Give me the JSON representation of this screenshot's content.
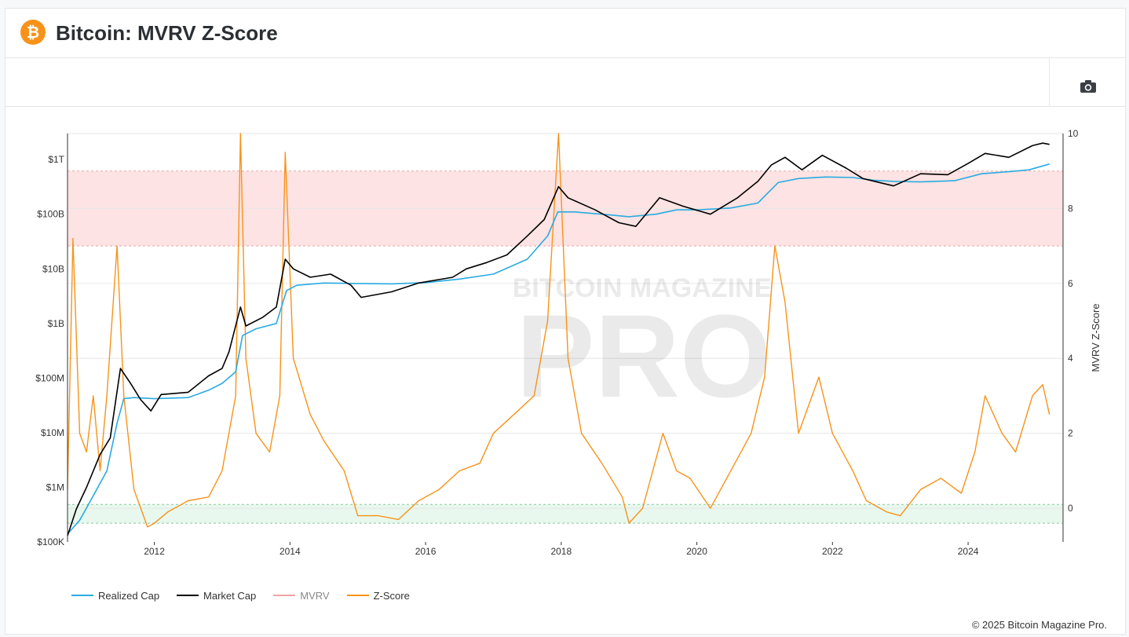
{
  "header": {
    "logo_glyph": "₿",
    "title": "Bitcoin: MVRV Z-Score"
  },
  "toolbar": {
    "camera_icon": "camera-icon"
  },
  "watermark": {
    "line1": "BITCOIN MAGAZINE",
    "line2": "PRO"
  },
  "footer": {
    "copyright": "© 2025 Bitcoin Magazine Pro."
  },
  "colors": {
    "realized": "#29abe2",
    "market": "#000000",
    "mvrv": "#f4a3a3",
    "zscore": "#f7931a",
    "red_band": "#fde3e3",
    "green_band": "#e8f8ee",
    "grid": "#e6e6e6"
  },
  "chart_data": {
    "type": "line",
    "title": "Bitcoin: MVRV Z-Score",
    "xlabel": "",
    "ylabel_right": "MVRV Z-Score",
    "y_left_scale": "log",
    "y_left_ticks": [
      {
        "value": 100000,
        "label": "$100K"
      },
      {
        "value": 1000000,
        "label": "$1M"
      },
      {
        "value": 10000000,
        "label": "$10M"
      },
      {
        "value": 100000000,
        "label": "$100M"
      },
      {
        "value": 1000000000,
        "label": "$1B"
      },
      {
        "value": 10000000000,
        "label": "$10B"
      },
      {
        "value": 100000000000,
        "label": "$100B"
      },
      {
        "value": 1000000000000,
        "label": "$1T"
      }
    ],
    "y_left_range": [
      100000,
      3000000000000
    ],
    "y_right_ticks": [
      0,
      2,
      4,
      6,
      8,
      10
    ],
    "y_right_range": [
      -0.9,
      10
    ],
    "x_ticks": [
      "2012",
      "2014",
      "2016",
      "2018",
      "2020",
      "2022",
      "2024"
    ],
    "x_range": [
      2010.72,
      2025.4
    ],
    "zones": [
      {
        "name": "overvalued",
        "z_from": 7,
        "z_to": 9
      },
      {
        "name": "undervalued",
        "z_from": -0.4,
        "z_to": 0.1
      }
    ],
    "grid": true,
    "legend_position": "bottom-left",
    "series": [
      {
        "name": "Realized Cap",
        "axis": "left",
        "points": [
          [
            2010.72,
            140000
          ],
          [
            2010.9,
            250000
          ],
          [
            2011.1,
            700000
          ],
          [
            2011.3,
            2000000
          ],
          [
            2011.45,
            15000000
          ],
          [
            2011.55,
            42000000
          ],
          [
            2011.7,
            44000000
          ],
          [
            2012.0,
            42000000
          ],
          [
            2012.5,
            44000000
          ],
          [
            2012.8,
            60000000
          ],
          [
            2013.0,
            80000000
          ],
          [
            2013.2,
            130000000
          ],
          [
            2013.3,
            600000000
          ],
          [
            2013.5,
            800000000
          ],
          [
            2013.8,
            1000000000
          ],
          [
            2013.95,
            4000000000
          ],
          [
            2014.1,
            5000000000
          ],
          [
            2014.5,
            5500000000
          ],
          [
            2015.0,
            5400000000
          ],
          [
            2015.5,
            5300000000
          ],
          [
            2016.0,
            5600000000
          ],
          [
            2016.5,
            6500000000
          ],
          [
            2017.0,
            8000000000
          ],
          [
            2017.5,
            15000000000
          ],
          [
            2017.8,
            40000000000
          ],
          [
            2017.95,
            110000000000
          ],
          [
            2018.2,
            110000000000
          ],
          [
            2018.6,
            100000000000
          ],
          [
            2019.0,
            90000000000
          ],
          [
            2019.4,
            100000000000
          ],
          [
            2019.7,
            120000000000
          ],
          [
            2020.0,
            120000000000
          ],
          [
            2020.5,
            130000000000
          ],
          [
            2020.9,
            160000000000
          ],
          [
            2021.2,
            380000000000
          ],
          [
            2021.5,
            450000000000
          ],
          [
            2021.9,
            480000000000
          ],
          [
            2022.3,
            470000000000
          ],
          [
            2022.6,
            420000000000
          ],
          [
            2022.9,
            400000000000
          ],
          [
            2023.3,
            390000000000
          ],
          [
            2023.8,
            410000000000
          ],
          [
            2024.2,
            550000000000
          ],
          [
            2024.6,
            600000000000
          ],
          [
            2024.9,
            650000000000
          ],
          [
            2025.2,
            830000000000
          ]
        ]
      },
      {
        "name": "Market Cap",
        "axis": "left",
        "points": [
          [
            2010.72,
            130000
          ],
          [
            2010.85,
            400000
          ],
          [
            2011.0,
            1000000
          ],
          [
            2011.2,
            4000000
          ],
          [
            2011.35,
            8000000
          ],
          [
            2011.5,
            150000000
          ],
          [
            2011.65,
            80000000
          ],
          [
            2011.8,
            40000000
          ],
          [
            2011.95,
            25000000
          ],
          [
            2012.1,
            50000000
          ],
          [
            2012.5,
            55000000
          ],
          [
            2012.8,
            110000000
          ],
          [
            2013.0,
            150000000
          ],
          [
            2013.1,
            300000000
          ],
          [
            2013.27,
            2000000000
          ],
          [
            2013.35,
            900000000
          ],
          [
            2013.6,
            1300000000
          ],
          [
            2013.8,
            2000000000
          ],
          [
            2013.93,
            15000000000
          ],
          [
            2014.05,
            10000000000
          ],
          [
            2014.3,
            7000000000
          ],
          [
            2014.6,
            8000000000
          ],
          [
            2014.9,
            5000000000
          ],
          [
            2015.05,
            3000000000
          ],
          [
            2015.5,
            3800000000
          ],
          [
            2015.9,
            5500000000
          ],
          [
            2016.4,
            7000000000
          ],
          [
            2016.6,
            10000000000
          ],
          [
            2016.9,
            13000000000
          ],
          [
            2017.2,
            18000000000
          ],
          [
            2017.5,
            40000000000
          ],
          [
            2017.75,
            80000000000
          ],
          [
            2017.96,
            320000000000
          ],
          [
            2018.1,
            200000000000
          ],
          [
            2018.5,
            120000000000
          ],
          [
            2018.85,
            70000000000
          ],
          [
            2019.1,
            60000000000
          ],
          [
            2019.45,
            200000000000
          ],
          [
            2019.8,
            140000000000
          ],
          [
            2020.2,
            100000000000
          ],
          [
            2020.6,
            200000000000
          ],
          [
            2020.9,
            400000000000
          ],
          [
            2021.1,
            800000000000
          ],
          [
            2021.3,
            1100000000000
          ],
          [
            2021.55,
            650000000000
          ],
          [
            2021.85,
            1200000000000
          ],
          [
            2022.2,
            700000000000
          ],
          [
            2022.45,
            450000000000
          ],
          [
            2022.9,
            330000000000
          ],
          [
            2023.3,
            550000000000
          ],
          [
            2023.7,
            530000000000
          ],
          [
            2024.0,
            850000000000
          ],
          [
            2024.25,
            1300000000000
          ],
          [
            2024.6,
            1100000000000
          ],
          [
            2024.95,
            1800000000000
          ],
          [
            2025.1,
            2000000000000
          ],
          [
            2025.2,
            1900000000000
          ]
        ]
      },
      {
        "name": "MVRV",
        "axis": "right",
        "hidden": true,
        "points": []
      },
      {
        "name": "Z-Score",
        "axis": "right",
        "points": [
          [
            2010.72,
            0.5
          ],
          [
            2010.8,
            7.2
          ],
          [
            2010.9,
            2.0
          ],
          [
            2011.0,
            1.5
          ],
          [
            2011.1,
            3.0
          ],
          [
            2011.2,
            1.0
          ],
          [
            2011.3,
            3.0
          ],
          [
            2011.45,
            7.0
          ],
          [
            2011.55,
            3.0
          ],
          [
            2011.7,
            0.5
          ],
          [
            2011.9,
            -0.5
          ],
          [
            2012.0,
            -0.4
          ],
          [
            2012.2,
            -0.1
          ],
          [
            2012.5,
            0.2
          ],
          [
            2012.8,
            0.3
          ],
          [
            2013.0,
            1.0
          ],
          [
            2013.2,
            3.0
          ],
          [
            2013.27,
            10.0
          ],
          [
            2013.35,
            4.0
          ],
          [
            2013.5,
            2.0
          ],
          [
            2013.7,
            1.5
          ],
          [
            2013.85,
            3.0
          ],
          [
            2013.93,
            9.5
          ],
          [
            2014.05,
            4.0
          ],
          [
            2014.3,
            2.5
          ],
          [
            2014.5,
            1.8
          ],
          [
            2014.8,
            1.0
          ],
          [
            2015.0,
            -0.2
          ],
          [
            2015.3,
            -0.2
          ],
          [
            2015.6,
            -0.3
          ],
          [
            2015.9,
            0.2
          ],
          [
            2016.2,
            0.5
          ],
          [
            2016.5,
            1.0
          ],
          [
            2016.8,
            1.2
          ],
          [
            2017.0,
            2.0
          ],
          [
            2017.3,
            2.5
          ],
          [
            2017.6,
            3.0
          ],
          [
            2017.8,
            5.0
          ],
          [
            2017.96,
            10.0
          ],
          [
            2018.1,
            4.0
          ],
          [
            2018.3,
            2.0
          ],
          [
            2018.6,
            1.2
          ],
          [
            2018.9,
            0.3
          ],
          [
            2019.0,
            -0.4
          ],
          [
            2019.2,
            0.0
          ],
          [
            2019.5,
            2.0
          ],
          [
            2019.7,
            1.0
          ],
          [
            2019.9,
            0.8
          ],
          [
            2020.2,
            0.0
          ],
          [
            2020.5,
            1.0
          ],
          [
            2020.8,
            2.0
          ],
          [
            2021.0,
            3.5
          ],
          [
            2021.15,
            7.0
          ],
          [
            2021.3,
            5.5
          ],
          [
            2021.5,
            2.0
          ],
          [
            2021.8,
            3.5
          ],
          [
            2022.0,
            2.0
          ],
          [
            2022.3,
            1.0
          ],
          [
            2022.5,
            0.2
          ],
          [
            2022.8,
            -0.1
          ],
          [
            2023.0,
            -0.2
          ],
          [
            2023.3,
            0.5
          ],
          [
            2023.6,
            0.8
          ],
          [
            2023.9,
            0.4
          ],
          [
            2024.1,
            1.5
          ],
          [
            2024.25,
            3.0
          ],
          [
            2024.5,
            2.0
          ],
          [
            2024.7,
            1.5
          ],
          [
            2024.95,
            3.0
          ],
          [
            2025.1,
            3.3
          ],
          [
            2025.2,
            2.5
          ]
        ]
      }
    ]
  }
}
